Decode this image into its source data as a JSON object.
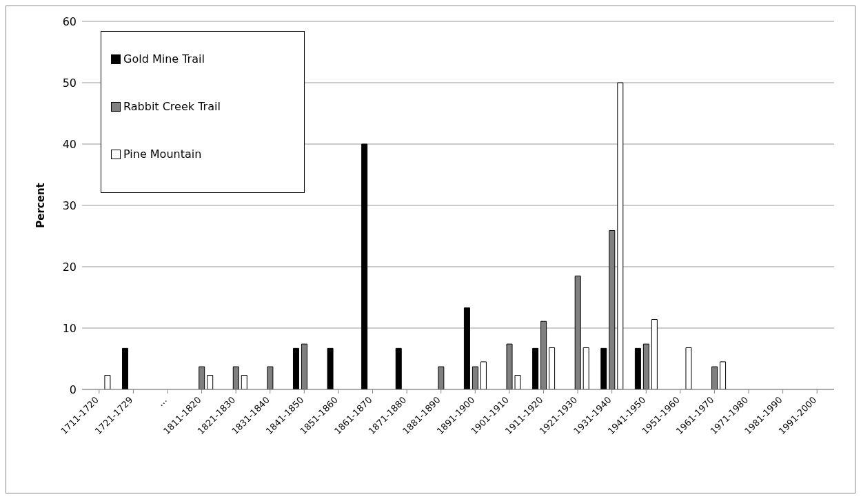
{
  "chart_data": {
    "type": "bar",
    "ylabel": "Percent",
    "categories": [
      "1711-1720",
      "1721-1729",
      "…",
      "1811-1820",
      "1821-1830",
      "1831-1840",
      "1841-1850",
      "1851-1860",
      "1861-1870",
      "1871-1880",
      "1881-1890",
      "1891-1900",
      "1901-1910",
      "1911-1920",
      "1921-1930",
      "1931-1940",
      "1941-1950",
      "1951-1960",
      "1961-1970",
      "1971-1980",
      "1981-1990",
      "1991-2000"
    ],
    "series": [
      {
        "name": "Gold Mine Trail",
        "color": "#000000",
        "values": [
          null,
          6.7,
          null,
          null,
          null,
          null,
          6.7,
          6.7,
          40,
          6.7,
          null,
          13.3,
          null,
          6.7,
          null,
          6.7,
          6.7,
          null,
          null,
          null,
          null,
          null
        ]
      },
      {
        "name": "Rabbit Creek Trail",
        "color": "#808080",
        "values": [
          null,
          null,
          null,
          3.7,
          3.7,
          3.7,
          7.4,
          null,
          null,
          null,
          3.7,
          3.7,
          7.4,
          11.1,
          18.5,
          25.9,
          7.4,
          null,
          3.7,
          null,
          null,
          null
        ]
      },
      {
        "name": "Pine Mountain",
        "color": "#ffffff",
        "values": [
          2.3,
          null,
          null,
          2.3,
          2.3,
          null,
          null,
          null,
          null,
          null,
          null,
          4.5,
          2.3,
          6.8,
          6.8,
          50,
          11.4,
          6.8,
          4.5,
          null,
          null,
          null
        ]
      }
    ],
    "ylim": [
      0,
      60
    ],
    "yticks": [
      0,
      10,
      20,
      30,
      40,
      50,
      60
    ],
    "grid": "y",
    "legend": "top left"
  }
}
